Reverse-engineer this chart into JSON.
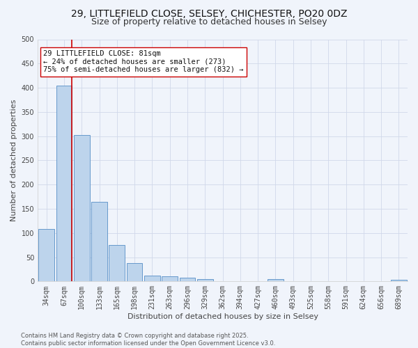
{
  "title1": "29, LITTLEFIELD CLOSE, SELSEY, CHICHESTER, PO20 0DZ",
  "title2": "Size of property relative to detached houses in Selsey",
  "xlabel": "Distribution of detached houses by size in Selsey",
  "ylabel": "Number of detached properties",
  "categories": [
    "34sqm",
    "67sqm",
    "100sqm",
    "133sqm",
    "165sqm",
    "198sqm",
    "231sqm",
    "263sqm",
    "296sqm",
    "329sqm",
    "362sqm",
    "394sqm",
    "427sqm",
    "460sqm",
    "493sqm",
    "525sqm",
    "558sqm",
    "591sqm",
    "624sqm",
    "656sqm",
    "689sqm"
  ],
  "values": [
    108,
    405,
    303,
    165,
    75,
    38,
    12,
    11,
    8,
    5,
    0,
    0,
    0,
    5,
    0,
    0,
    0,
    0,
    0,
    0,
    4
  ],
  "bar_color": "#bdd4ec",
  "bar_edge_color": "#6699cc",
  "grid_color": "#d0d8ea",
  "background_color": "#f0f4fb",
  "vline_x": 1.42,
  "vline_color": "#cc0000",
  "annotation_text": "29 LITTLEFIELD CLOSE: 81sqm\n← 24% of detached houses are smaller (273)\n75% of semi-detached houses are larger (832) →",
  "annotation_box_color": "#ffffff",
  "annotation_box_edge": "#cc0000",
  "ylim": [
    0,
    500
  ],
  "yticks": [
    0,
    50,
    100,
    150,
    200,
    250,
    300,
    350,
    400,
    450,
    500
  ],
  "footnote": "Contains HM Land Registry data © Crown copyright and database right 2025.\nContains public sector information licensed under the Open Government Licence v3.0.",
  "title1_fontsize": 10,
  "title2_fontsize": 9,
  "xlabel_fontsize": 8,
  "ylabel_fontsize": 8,
  "tick_fontsize": 7,
  "annotation_fontsize": 7.5,
  "footnote_fontsize": 6
}
